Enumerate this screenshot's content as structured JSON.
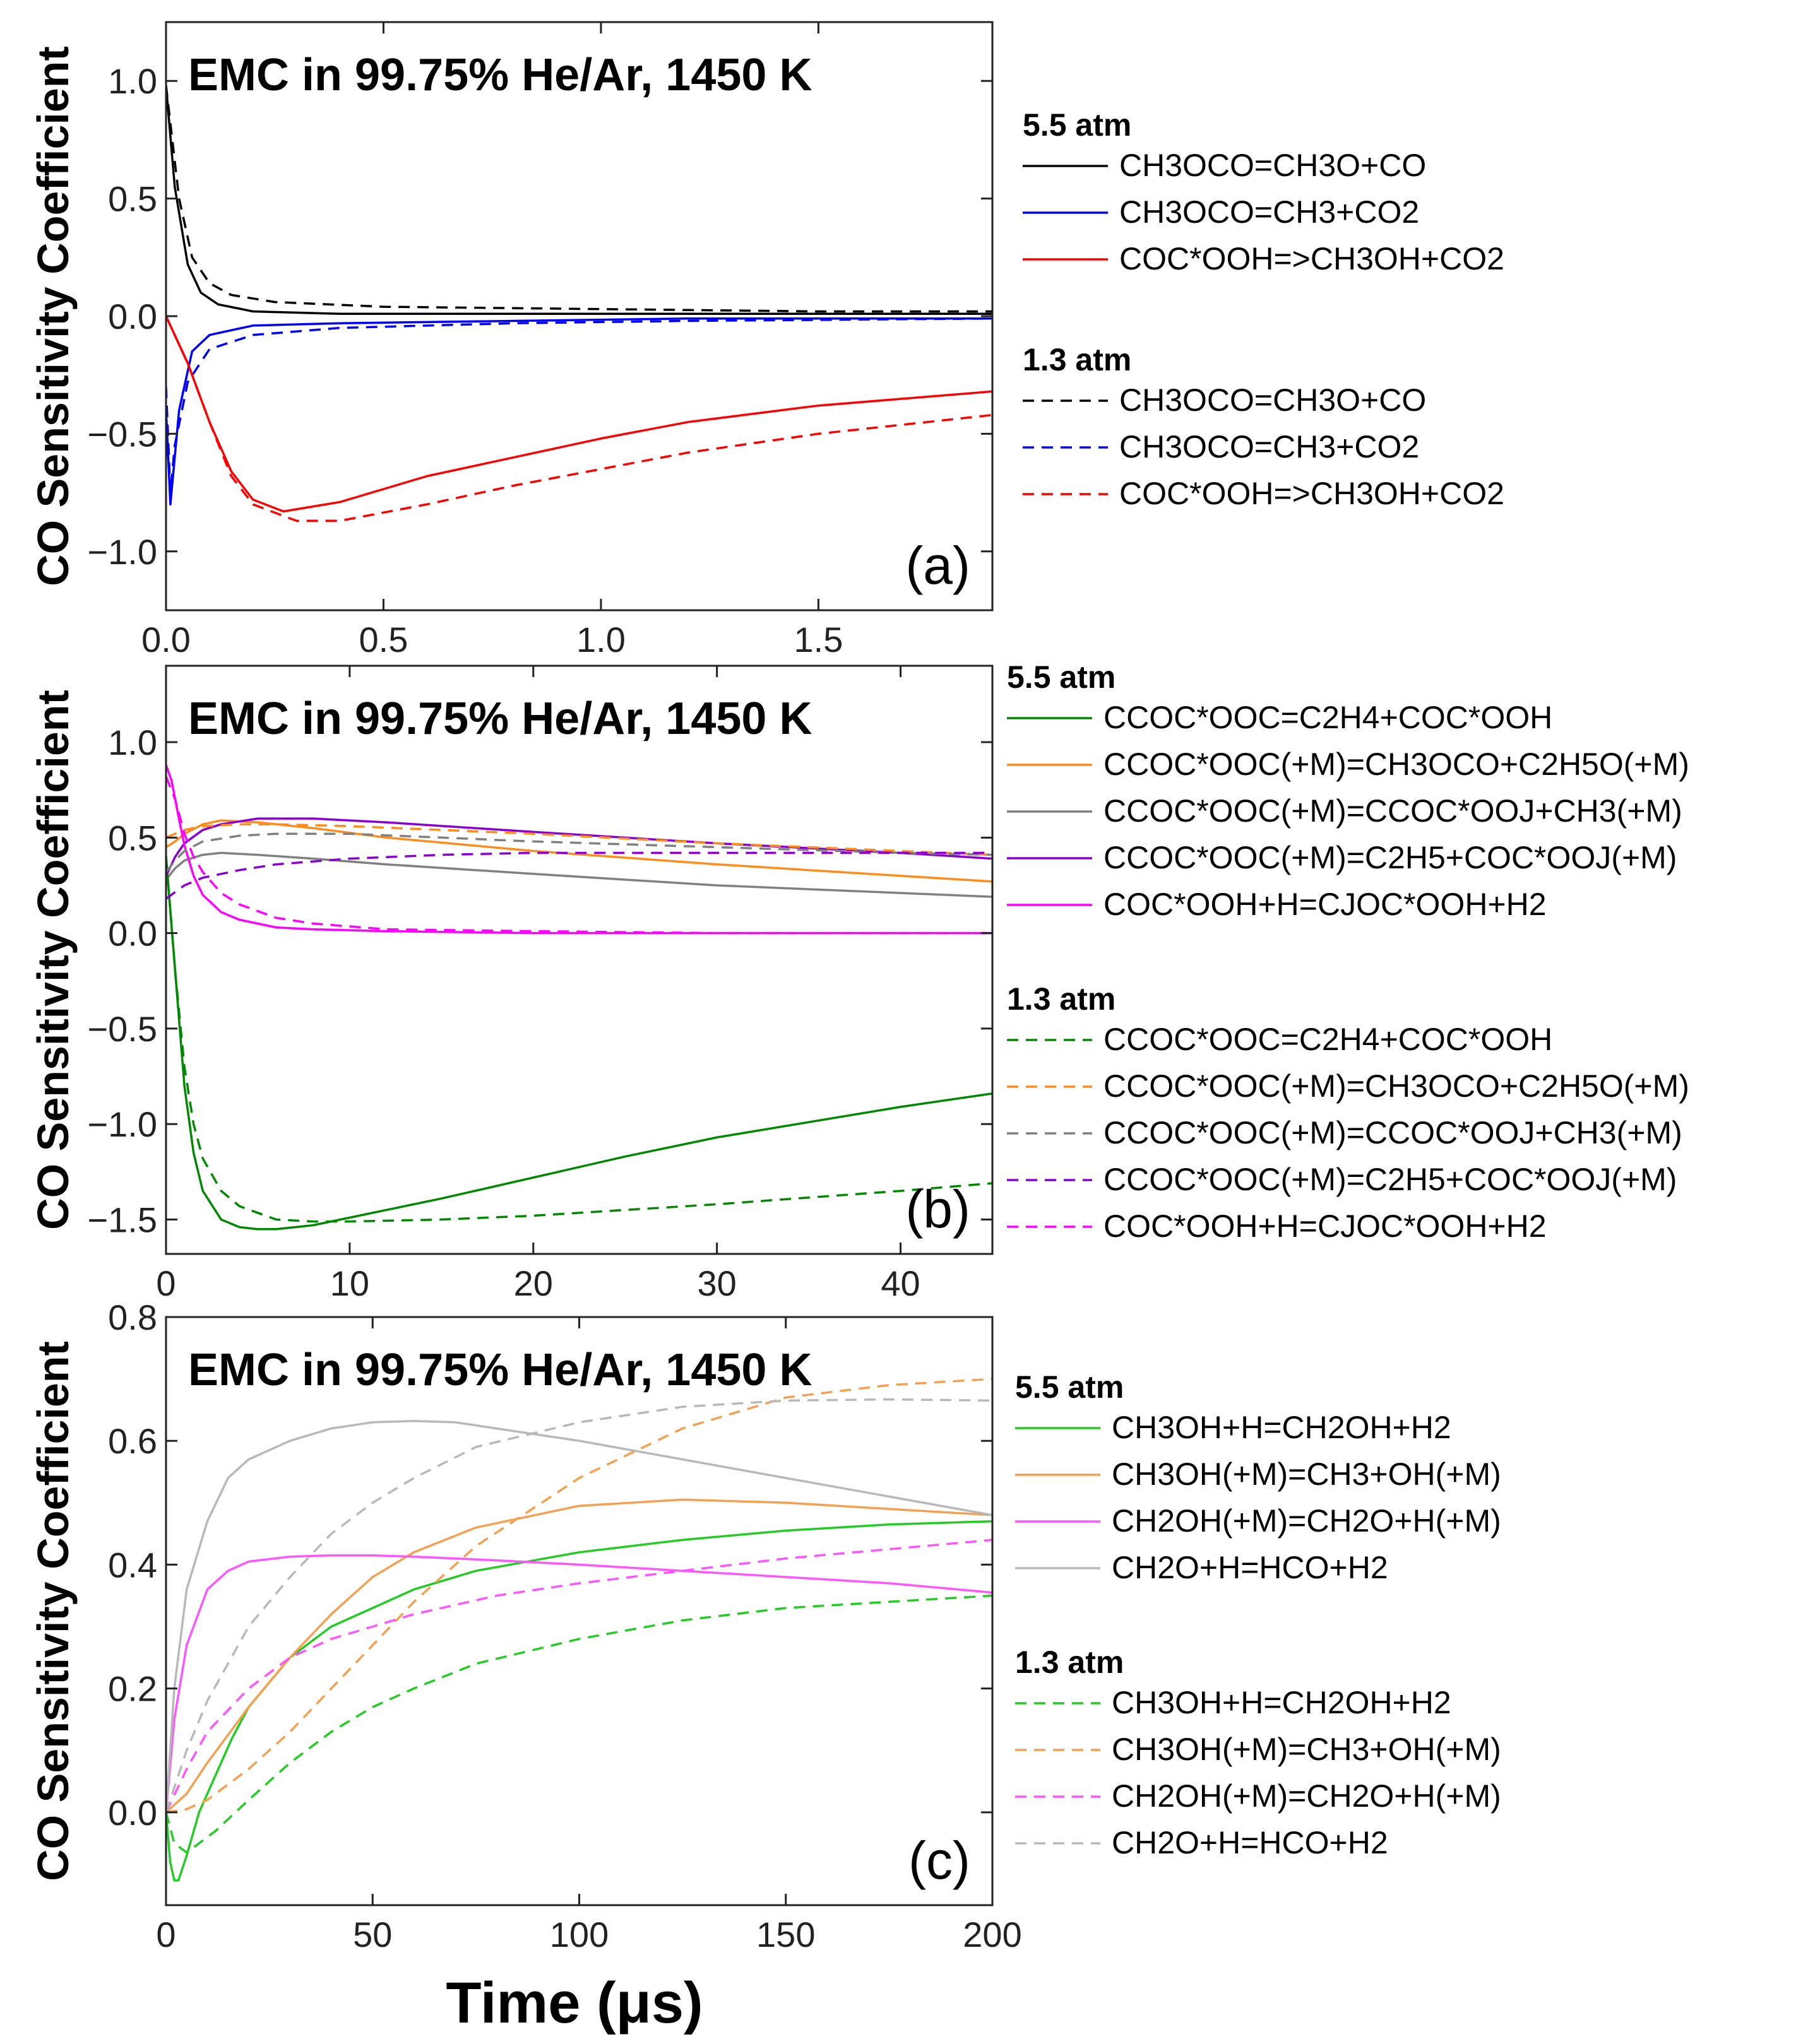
{
  "figure": {
    "xlabel": "Time (μs)"
  },
  "chart_data": [
    {
      "type": "line",
      "panel": "(a)",
      "title": "EMC in 99.75% He/Ar, 1450 K",
      "ylabel": "CO Sensitivity Coefficient",
      "xlim": [
        0,
        1.9
      ],
      "ylim": [
        -1.25,
        1.25
      ],
      "xticks": [
        0.0,
        0.5,
        1.0,
        1.5
      ],
      "xtick_labels": [
        "0.0",
        "0.5",
        "1.0",
        "1.5"
      ],
      "yticks": [
        1.0,
        0.5,
        0.0,
        -0.5,
        -1.0
      ],
      "ytick_labels": [
        "1.0",
        "0.5",
        "0.0",
        "−0.5",
        "−1.0"
      ],
      "groups": [
        {
          "heading": "5.5 atm",
          "style": "solid"
        },
        {
          "heading": "1.3 atm",
          "style": "dashed"
        }
      ],
      "series": [
        {
          "name": "CH3OCO=CH3O+CO",
          "group": 0,
          "color": "#000000",
          "x": [
            0,
            0.02,
            0.05,
            0.08,
            0.12,
            0.2,
            0.4,
            0.7,
            1.0,
            1.5,
            1.9
          ],
          "y": [
            0.98,
            0.55,
            0.22,
            0.1,
            0.05,
            0.02,
            0.01,
            0.01,
            0.01,
            0.01,
            0.01
          ]
        },
        {
          "name": "CH3OCO=CH3+CO2",
          "group": 0,
          "color": "#0000ff",
          "x": [
            0,
            0.01,
            0.03,
            0.06,
            0.1,
            0.2,
            0.4,
            0.8,
            1.2,
            1.9
          ],
          "y": [
            -0.4,
            -0.8,
            -0.4,
            -0.15,
            -0.08,
            -0.04,
            -0.03,
            -0.02,
            -0.01,
            -0.01
          ]
        },
        {
          "name": "COC*OOH=>CH3OH+CO2",
          "group": 0,
          "color": "#ff0000",
          "x": [
            0,
            0.05,
            0.1,
            0.15,
            0.2,
            0.27,
            0.4,
            0.6,
            0.8,
            1.0,
            1.2,
            1.5,
            1.9
          ],
          "y": [
            0.0,
            -0.2,
            -0.45,
            -0.66,
            -0.78,
            -0.83,
            -0.79,
            -0.68,
            -0.6,
            -0.52,
            -0.45,
            -0.38,
            -0.32
          ]
        },
        {
          "name": "CH3OCO=CH3O+CO",
          "group": 1,
          "color": "#000000",
          "x": [
            0,
            0.03,
            0.06,
            0.1,
            0.15,
            0.25,
            0.5,
            1.0,
            1.5,
            1.9
          ],
          "y": [
            0.98,
            0.5,
            0.25,
            0.14,
            0.09,
            0.06,
            0.04,
            0.03,
            0.02,
            0.02
          ]
        },
        {
          "name": "CH3OCO=CH3+CO2",
          "group": 1,
          "color": "#0000ff",
          "x": [
            0,
            0.01,
            0.02,
            0.05,
            0.1,
            0.2,
            0.4,
            0.8,
            1.2,
            1.9
          ],
          "y": [
            -0.3,
            -0.75,
            -0.55,
            -0.28,
            -0.14,
            -0.08,
            -0.05,
            -0.03,
            -0.02,
            -0.01
          ]
        },
        {
          "name": "COC*OOH=>CH3OH+CO2",
          "group": 1,
          "color": "#ff0000",
          "x": [
            0,
            0.05,
            0.1,
            0.15,
            0.2,
            0.3,
            0.4,
            0.6,
            0.8,
            1.0,
            1.2,
            1.5,
            1.9
          ],
          "y": [
            0.0,
            -0.2,
            -0.45,
            -0.68,
            -0.8,
            -0.87,
            -0.87,
            -0.8,
            -0.72,
            -0.65,
            -0.58,
            -0.5,
            -0.42
          ]
        }
      ]
    },
    {
      "type": "line",
      "panel": "(b)",
      "title": "EMC in 99.75% He/Ar, 1450 K",
      "ylabel": "CO Sensitivity Coefficient",
      "xlim": [
        0,
        45
      ],
      "ylim": [
        -1.68,
        1.4
      ],
      "xticks": [
        0,
        10,
        20,
        30,
        40
      ],
      "xtick_labels": [
        "0",
        "10",
        "20",
        "30",
        "40"
      ],
      "yticks": [
        1.0,
        0.5,
        0.0,
        -0.5,
        -1.0,
        -1.5
      ],
      "ytick_labels": [
        "1.0",
        "0.5",
        "0.0",
        "−0.5",
        "−1.0",
        "−1.5"
      ],
      "groups": [
        {
          "heading": "5.5 atm",
          "style": "solid"
        },
        {
          "heading": "1.3 atm",
          "style": "dashed"
        }
      ],
      "series": [
        {
          "name": "CCOC*OOC=C2H4+COC*OOH",
          "group": 0,
          "color": "#008800",
          "x": [
            0,
            0.5,
            1,
            1.5,
            2,
            3,
            4,
            5,
            6,
            8,
            10,
            15,
            20,
            25,
            30,
            35,
            40,
            45
          ],
          "y": [
            0.4,
            -0.2,
            -0.8,
            -1.15,
            -1.35,
            -1.5,
            -1.54,
            -1.55,
            -1.55,
            -1.53,
            -1.49,
            -1.39,
            -1.28,
            -1.17,
            -1.07,
            -0.99,
            -0.91,
            -0.84
          ]
        },
        {
          "name": "CCOC*OOC(+M)=CH3OCO+C2H5O(+M)",
          "group": 0,
          "color": "#ff8c1a",
          "x": [
            0,
            0.5,
            1,
            2,
            3,
            5,
            8,
            12,
            20,
            30,
            40,
            45
          ],
          "y": [
            0.45,
            0.48,
            0.52,
            0.57,
            0.59,
            0.58,
            0.55,
            0.5,
            0.43,
            0.36,
            0.3,
            0.27
          ]
        },
        {
          "name": "CCOC*OOC(+M)=CCOC*OOJ+CH3(+M)",
          "group": 0,
          "color": "#808080",
          "x": [
            0,
            0.5,
            1,
            2,
            3,
            5,
            8,
            12,
            20,
            30,
            40,
            45
          ],
          "y": [
            0.28,
            0.34,
            0.38,
            0.41,
            0.42,
            0.41,
            0.39,
            0.36,
            0.31,
            0.25,
            0.21,
            0.19
          ]
        },
        {
          "name": "CCOC*OOC(+M)=C2H5+COC*OOJ(+M)",
          "group": 0,
          "color": "#8a00d4",
          "x": [
            0,
            0.5,
            1,
            2,
            3,
            5,
            8,
            12,
            20,
            30,
            40,
            45
          ],
          "y": [
            0.3,
            0.4,
            0.47,
            0.54,
            0.57,
            0.6,
            0.6,
            0.58,
            0.53,
            0.47,
            0.42,
            0.39
          ]
        },
        {
          "name": "COC*OOH+H=CJOC*OOH+H2",
          "group": 0,
          "color": "#ff00ff",
          "x": [
            0,
            0.3,
            0.7,
            1,
            1.5,
            2,
            3,
            4,
            6,
            8,
            12,
            20,
            30,
            45
          ],
          "y": [
            0.88,
            0.8,
            0.6,
            0.46,
            0.3,
            0.2,
            0.11,
            0.07,
            0.03,
            0.02,
            0.01,
            0.0,
            0.0,
            0.0
          ]
        },
        {
          "name": "CCOC*OOC=C2H4+COC*OOH",
          "group": 1,
          "color": "#008800",
          "x": [
            0,
            0.5,
            1,
            1.5,
            2,
            3,
            4,
            6,
            8,
            10,
            15,
            20,
            30,
            40,
            45
          ],
          "y": [
            0.4,
            -0.2,
            -0.7,
            -1.0,
            -1.18,
            -1.35,
            -1.43,
            -1.5,
            -1.51,
            -1.51,
            -1.5,
            -1.48,
            -1.42,
            -1.35,
            -1.31
          ]
        },
        {
          "name": "CCOC*OOC(+M)=CH3OCO+C2H5O(+M)",
          "group": 1,
          "color": "#ff8c1a",
          "x": [
            0,
            0.5,
            1,
            2,
            4,
            6,
            10,
            15,
            20,
            30,
            40,
            45
          ],
          "y": [
            0.5,
            0.52,
            0.54,
            0.56,
            0.57,
            0.57,
            0.56,
            0.54,
            0.52,
            0.47,
            0.43,
            0.41
          ]
        },
        {
          "name": "CCOC*OOC(+M)=CCOC*OOJ+CH3(+M)",
          "group": 1,
          "color": "#808080",
          "x": [
            0,
            0.5,
            1,
            2,
            4,
            6,
            10,
            15,
            20,
            30,
            40,
            45
          ],
          "y": [
            0.32,
            0.38,
            0.43,
            0.48,
            0.51,
            0.52,
            0.52,
            0.5,
            0.48,
            0.45,
            0.42,
            0.41
          ]
        },
        {
          "name": "CCOC*OOC(+M)=C2H5+COC*OOJ(+M)",
          "group": 1,
          "color": "#8a00d4",
          "x": [
            0,
            1,
            2,
            4,
            6,
            10,
            15,
            20,
            30,
            40,
            45
          ],
          "y": [
            0.18,
            0.25,
            0.29,
            0.33,
            0.36,
            0.39,
            0.41,
            0.42,
            0.42,
            0.42,
            0.42
          ]
        },
        {
          "name": "COC*OOH+H=CJOC*OOH+H2",
          "group": 1,
          "color": "#ff00ff",
          "x": [
            0,
            0.5,
            1,
            1.5,
            2,
            3,
            4,
            6,
            8,
            12,
            20,
            30,
            45
          ],
          "y": [
            0.82,
            0.7,
            0.52,
            0.4,
            0.32,
            0.21,
            0.15,
            0.08,
            0.05,
            0.02,
            0.01,
            0.0,
            0.0
          ]
        }
      ]
    },
    {
      "type": "line",
      "panel": "(c)",
      "title": "EMC in 99.75% He/Ar, 1450 K",
      "ylabel": "CO Sensitivity Coefficient",
      "xlim": [
        0,
        200
      ],
      "ylim": [
        -0.15,
        0.8
      ],
      "xticks": [
        0,
        50,
        100,
        150,
        200
      ],
      "xtick_labels": [
        "0",
        "50",
        "100",
        "150",
        "200"
      ],
      "yticks": [
        0.8,
        0.6,
        0.4,
        0.2,
        0.0
      ],
      "ytick_labels": [
        "0.8",
        "0.6",
        "0.4",
        "0.2",
        "0.0"
      ],
      "groups": [
        {
          "heading": "5.5 atm",
          "style": "solid"
        },
        {
          "heading": "1.3 atm",
          "style": "dashed"
        }
      ],
      "series": [
        {
          "name": "CH3OH+H=CH2OH+H2",
          "group": 0,
          "color": "#22cc22",
          "x": [
            0,
            1,
            2,
            3,
            5,
            8,
            12,
            16,
            20,
            30,
            40,
            50,
            60,
            75,
            100,
            125,
            150,
            175,
            200
          ],
          "y": [
            0.0,
            -0.08,
            -0.11,
            -0.11,
            -0.07,
            0.0,
            0.06,
            0.12,
            0.17,
            0.25,
            0.3,
            0.33,
            0.36,
            0.39,
            0.42,
            0.44,
            0.455,
            0.465,
            0.47
          ]
        },
        {
          "name": "CH3OH(+M)=CH3+OH(+M)",
          "group": 0,
          "color": "#f5a050",
          "x": [
            0,
            5,
            10,
            20,
            30,
            40,
            50,
            60,
            75,
            100,
            125,
            150,
            175,
            200
          ],
          "y": [
            0.0,
            0.03,
            0.08,
            0.17,
            0.25,
            0.32,
            0.38,
            0.42,
            0.46,
            0.495,
            0.505,
            0.5,
            0.49,
            0.48
          ]
        },
        {
          "name": "CH2OH(+M)=CH2O+H(+M)",
          "group": 0,
          "color": "#ff55ff",
          "x": [
            0,
            2,
            5,
            10,
            15,
            20,
            30,
            40,
            50,
            60,
            80,
            100,
            125,
            150,
            175,
            200
          ],
          "y": [
            0.0,
            0.15,
            0.27,
            0.36,
            0.39,
            0.405,
            0.413,
            0.415,
            0.415,
            0.413,
            0.407,
            0.4,
            0.39,
            0.38,
            0.37,
            0.355
          ]
        },
        {
          "name": "CH2O+H=HCO+H2",
          "group": 0,
          "color": "#b8b8b8",
          "x": [
            0,
            2,
            5,
            10,
            15,
            20,
            30,
            40,
            50,
            60,
            70,
            80,
            100,
            125,
            150,
            175,
            200
          ],
          "y": [
            0.0,
            0.2,
            0.36,
            0.47,
            0.54,
            0.57,
            0.6,
            0.62,
            0.63,
            0.632,
            0.63,
            0.62,
            0.6,
            0.57,
            0.54,
            0.51,
            0.48
          ]
        },
        {
          "name": "CH3OH+H=CH2OH+H2",
          "group": 1,
          "color": "#22cc22",
          "x": [
            0,
            2,
            5,
            8,
            12,
            20,
            30,
            40,
            50,
            60,
            75,
            100,
            125,
            150,
            175,
            200
          ],
          "y": [
            0.0,
            -0.05,
            -0.065,
            -0.05,
            -0.03,
            0.02,
            0.08,
            0.13,
            0.17,
            0.2,
            0.24,
            0.28,
            0.31,
            0.33,
            0.34,
            0.35
          ]
        },
        {
          "name": "CH3OH(+M)=CH3+OH(+M)",
          "group": 1,
          "color": "#f5a050",
          "x": [
            0,
            5,
            10,
            20,
            30,
            40,
            50,
            60,
            75,
            100,
            125,
            150,
            175,
            200
          ],
          "y": [
            0.0,
            0.005,
            0.02,
            0.07,
            0.13,
            0.2,
            0.27,
            0.34,
            0.43,
            0.54,
            0.62,
            0.67,
            0.69,
            0.7
          ]
        },
        {
          "name": "CH2OH(+M)=CH2O+H(+M)",
          "group": 1,
          "color": "#ff55ff",
          "x": [
            0,
            5,
            10,
            20,
            30,
            40,
            50,
            60,
            80,
            100,
            125,
            150,
            175,
            200
          ],
          "y": [
            0.0,
            0.07,
            0.13,
            0.2,
            0.25,
            0.28,
            0.3,
            0.32,
            0.35,
            0.37,
            0.39,
            0.41,
            0.425,
            0.44
          ]
        },
        {
          "name": "CH2O+H=HCO+H2",
          "group": 1,
          "color": "#b8b8b8",
          "x": [
            0,
            5,
            10,
            20,
            30,
            40,
            50,
            60,
            75,
            100,
            125,
            150,
            175,
            200
          ],
          "y": [
            0.0,
            0.1,
            0.18,
            0.3,
            0.38,
            0.45,
            0.5,
            0.54,
            0.59,
            0.63,
            0.655,
            0.665,
            0.667,
            0.665
          ]
        }
      ]
    }
  ]
}
